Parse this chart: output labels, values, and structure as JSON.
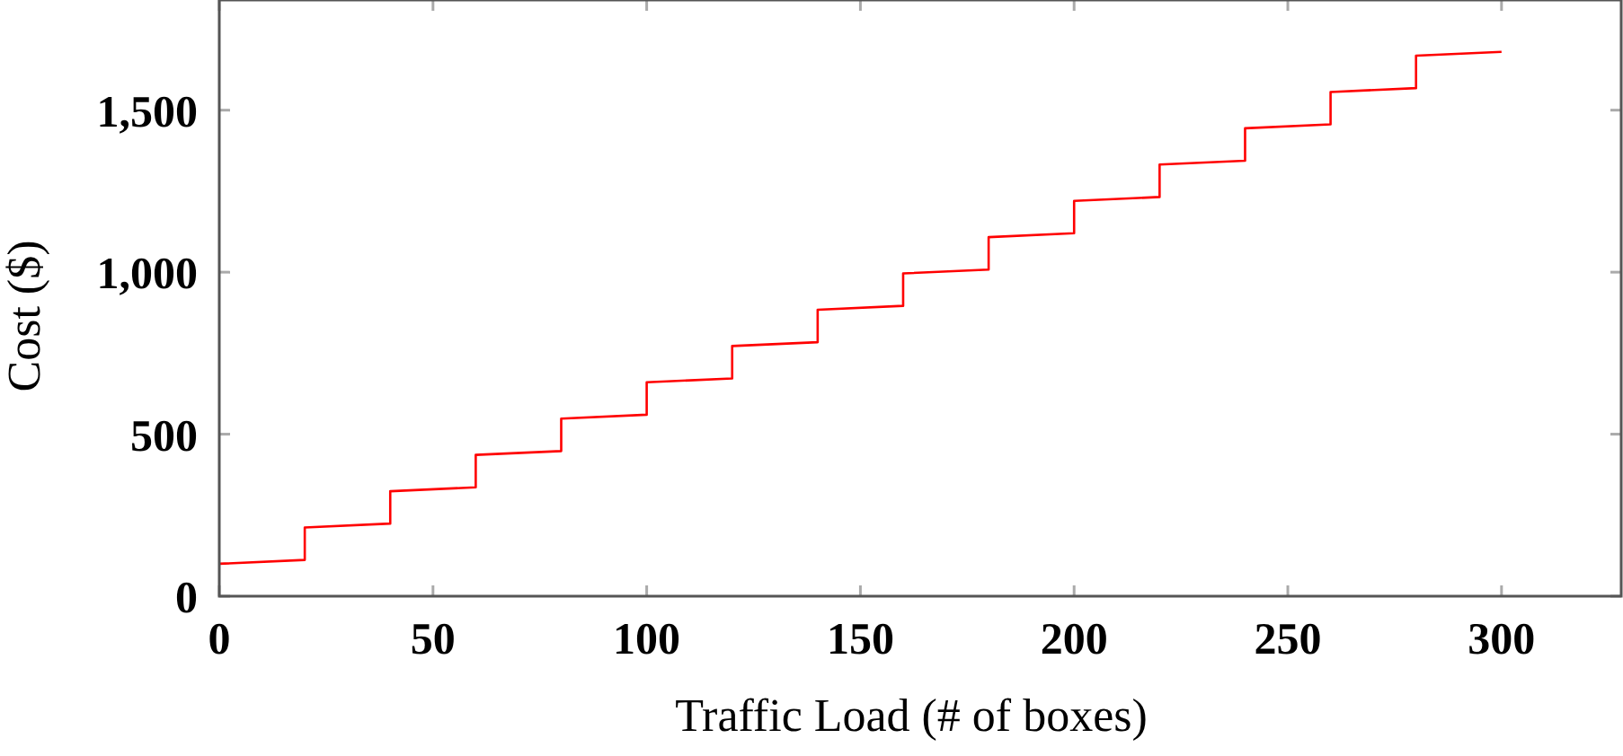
{
  "chart_data": {
    "type": "line",
    "xlabel": "Traffic Load (# of boxes)",
    "ylabel": "Cost ($)",
    "xlim": [
      0,
      328
    ],
    "ylim": [
      0,
      1840
    ],
    "xticks": [
      0,
      50,
      100,
      150,
      200,
      250,
      300
    ],
    "yticks": [
      0,
      {
        "value": 500,
        "label": "500"
      },
      {
        "value": 1000,
        "label": "1,000"
      },
      {
        "value": 1500,
        "label": "1,500"
      }
    ],
    "grid": false,
    "marker": "none",
    "line_style": "solid",
    "series": [
      {
        "color": "#ff0000",
        "x": [
          0,
          20,
          20,
          40,
          40,
          60,
          60,
          80,
          80,
          100,
          100,
          120,
          120,
          140,
          140,
          160,
          160,
          180,
          180,
          200,
          200,
          220,
          220,
          240,
          240,
          260,
          260,
          280,
          280,
          300
        ],
        "values": [
          100,
          112,
          212,
          224,
          324,
          336,
          436,
          448,
          548,
          560,
          660,
          672,
          772,
          784,
          884,
          896,
          996,
          1008,
          1108,
          1120,
          1220,
          1232,
          1332,
          1344,
          1444,
          1456,
          1556,
          1568,
          1668,
          1680
        ]
      }
    ]
  }
}
